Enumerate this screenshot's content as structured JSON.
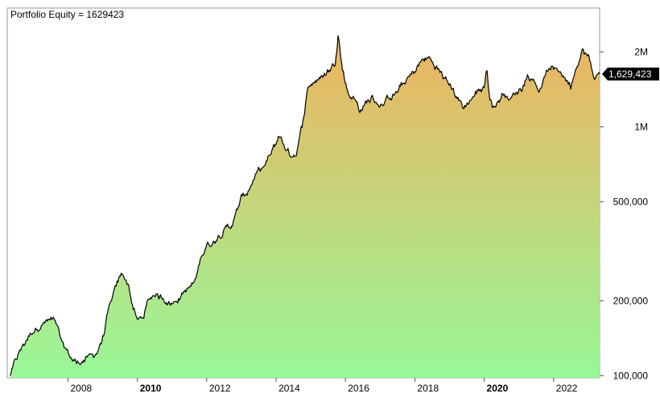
{
  "colors": {
    "background": "#ffffff",
    "frame": "#9a9a9a",
    "fill_top": "#efb35f",
    "fill_bottom": "#98f898",
    "line": "#000000",
    "last_value_badge": "#000000",
    "last_value_text": "#ffffff"
  },
  "chart_data": {
    "type": "area",
    "title": "Portfolio Equity = 1629423",
    "xlabel": "",
    "ylabel": "",
    "y_scale": "log",
    "xlim": [
      "2006-04-01",
      "2023-05-01"
    ],
    "ylim": [
      98000,
      3000000
    ],
    "grid": false,
    "x_ticks": [
      {
        "date": "2008-01-01",
        "label": "2008",
        "bold": false
      },
      {
        "date": "2010-01-01",
        "label": "2010",
        "bold": true
      },
      {
        "date": "2012-01-01",
        "label": "2012",
        "bold": false
      },
      {
        "date": "2014-01-01",
        "label": "2014",
        "bold": false
      },
      {
        "date": "2016-01-01",
        "label": "2016",
        "bold": false
      },
      {
        "date": "2018-01-01",
        "label": "2018",
        "bold": false
      },
      {
        "date": "2020-01-01",
        "label": "2020",
        "bold": true
      },
      {
        "date": "2022-01-01",
        "label": "2022",
        "bold": false
      }
    ],
    "y_ticks": [
      {
        "value": 100000,
        "label": "100,000"
      },
      {
        "value": 200000,
        "label": "200,000"
      },
      {
        "value": 500000,
        "label": "500,000"
      },
      {
        "value": 1000000,
        "label": "1M"
      },
      {
        "value": 2000000,
        "label": "2M"
      }
    ],
    "last_value": 1629423,
    "last_value_label": "1,629,423",
    "series": [
      {
        "x": [
          "2006-05-01",
          "2006-08-01",
          "2006-11-01",
          "2007-02-01",
          "2007-05-01",
          "2007-08-01",
          "2007-09-15",
          "2007-11-01",
          "2008-02-01",
          "2008-04-01",
          "2008-07-01",
          "2008-09-01",
          "2008-11-01",
          "2009-01-01",
          "2009-03-01",
          "2009-04-15",
          "2009-06-01",
          "2009-08-01",
          "2009-10-01",
          "2009-11-01",
          "2010-01-01",
          "2010-03-01",
          "2010-05-01",
          "2010-07-01",
          "2010-09-01",
          "2010-11-01",
          "2011-01-01",
          "2011-03-01",
          "2011-05-01",
          "2011-07-01",
          "2011-09-01",
          "2011-11-01",
          "2012-01-01",
          "2012-03-01",
          "2012-05-01",
          "2012-07-01",
          "2012-09-01",
          "2012-11-01",
          "2013-01-01",
          "2013-03-01",
          "2013-05-01",
          "2013-07-01",
          "2013-09-01",
          "2013-11-01",
          "2014-01-01",
          "2014-02-01",
          "2014-04-01",
          "2014-06-01",
          "2014-08-01",
          "2014-10-01",
          "2014-12-01",
          "2015-02-01",
          "2015-04-01",
          "2015-06-01",
          "2015-08-01",
          "2015-09-15",
          "2015-10-15",
          "2015-12-01",
          "2016-02-01",
          "2016-04-01",
          "2016-06-01",
          "2016-08-01",
          "2016-10-01",
          "2016-12-01",
          "2017-02-01",
          "2017-04-01",
          "2017-06-01",
          "2017-08-01",
          "2017-10-01",
          "2017-12-01",
          "2018-02-01",
          "2018-04-01",
          "2018-06-01",
          "2018-08-01",
          "2018-10-01",
          "2018-12-01",
          "2019-02-01",
          "2019-04-01",
          "2019-06-01",
          "2019-08-01",
          "2019-10-01",
          "2019-12-01",
          "2020-01-01",
          "2020-02-01",
          "2020-03-01",
          "2020-04-01",
          "2020-06-01",
          "2020-08-01",
          "2020-10-01",
          "2020-12-01",
          "2021-02-01",
          "2021-04-01",
          "2021-06-01",
          "2021-08-01",
          "2021-10-01",
          "2021-12-01",
          "2022-01-01",
          "2022-03-01",
          "2022-05-01",
          "2022-07-01",
          "2022-09-01",
          "2022-11-01",
          "2023-01-01",
          "2023-03-01",
          "2023-05-01"
        ],
        "y": [
          100000,
          122000,
          142000,
          158000,
          165000,
          166000,
          152000,
          130000,
          118000,
          112000,
          118000,
          118000,
          124000,
          142000,
          178000,
          204000,
          228000,
          258000,
          230000,
          200000,
          164000,
          172000,
          200000,
          214000,
          208000,
          204000,
          196000,
          204000,
          218000,
          224000,
          236000,
          300000,
          338000,
          342000,
          372000,
          392000,
          394000,
          445000,
          510000,
          545000,
          610000,
          655000,
          690000,
          760000,
          850000,
          925000,
          830000,
          770000,
          790000,
          1000000,
          1450000,
          1530000,
          1560000,
          1620000,
          1720000,
          1830000,
          2450000,
          1730000,
          1360000,
          1320000,
          1160000,
          1240000,
          1310000,
          1260000,
          1220000,
          1300000,
          1360000,
          1420000,
          1530000,
          1610000,
          1740000,
          1860000,
          1880000,
          1760000,
          1640000,
          1520000,
          1420000,
          1300000,
          1190000,
          1280000,
          1360000,
          1420000,
          1480000,
          1700000,
          1300000,
          1200000,
          1280000,
          1380000,
          1300000,
          1360000,
          1450000,
          1620000,
          1560000,
          1420000,
          1600000,
          1720000,
          1680000,
          1700000,
          1580000,
          1480000,
          1800000,
          2050000,
          1900000,
          1580000,
          1629423
        ]
      }
    ]
  }
}
